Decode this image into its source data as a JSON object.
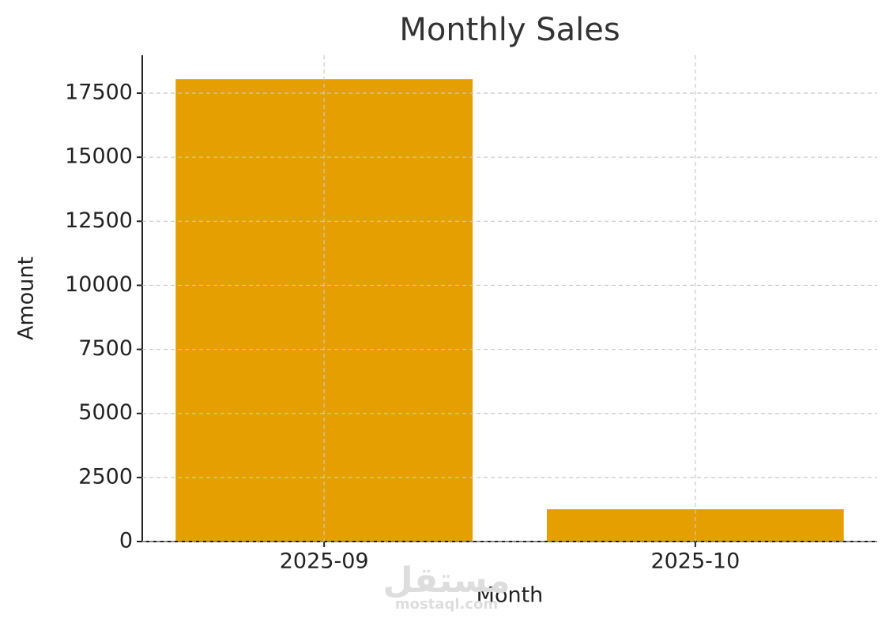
{
  "chart_data": {
    "type": "bar",
    "title": "Monthly Sales",
    "x_label": "Month",
    "y_label": "Amount",
    "categories": [
      "2025-09",
      "2025-10"
    ],
    "values": [
      18050,
      1260
    ],
    "color": "#e69f00",
    "ylim": [
      0,
      18980
    ],
    "yticks": [
      0,
      2500,
      5000,
      7500,
      10000,
      12500,
      15000,
      17500
    ],
    "grid": true
  },
  "watermark": {
    "arabic": "مستقل",
    "site": "mostaql.com"
  }
}
